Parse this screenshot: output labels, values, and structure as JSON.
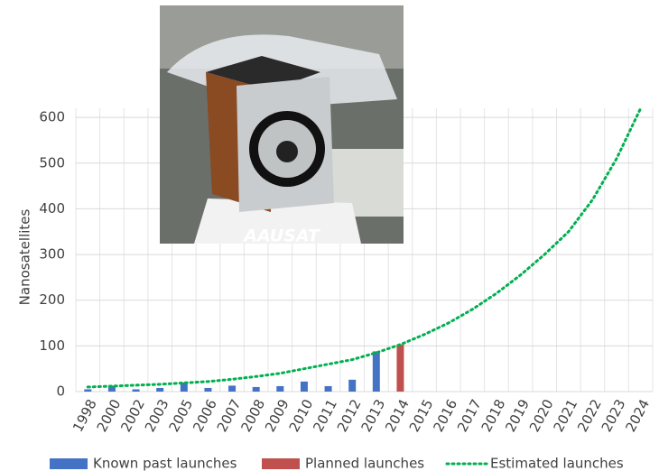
{
  "chart_data": {
    "type": "bar",
    "y_label": "Nanosatellites",
    "annotation": "AAUSAT",
    "categories": [
      "1998",
      "2000",
      "2002",
      "2003",
      "2005",
      "2006",
      "2007",
      "2008",
      "2009",
      "2010",
      "2011",
      "2012",
      "2013",
      "2014",
      "2015",
      "2016",
      "2017",
      "2018",
      "2019",
      "2020",
      "2021",
      "2022",
      "2023",
      "2024"
    ],
    "series": [
      {
        "name": "Known past launches",
        "type": "bar",
        "color": "#4472c4",
        "values": [
          5,
          13,
          5,
          8,
          20,
          8,
          13,
          10,
          12,
          22,
          12,
          26,
          88,
          null,
          null,
          null,
          null,
          null,
          null,
          null,
          null,
          null,
          null,
          null
        ]
      },
      {
        "name": "Planned launches",
        "type": "bar",
        "color": "#c0504d",
        "values": [
          null,
          null,
          null,
          null,
          null,
          null,
          null,
          null,
          null,
          null,
          null,
          null,
          null,
          103,
          null,
          null,
          null,
          null,
          null,
          null,
          null,
          null,
          null,
          null
        ]
      },
      {
        "name": "Estimated launches",
        "type": "line",
        "color": "#00b050",
        "values": [
          10,
          12,
          14,
          16,
          19,
          22,
          27,
          33,
          40,
          50,
          60,
          70,
          85,
          103,
          125,
          150,
          180,
          215,
          255,
          300,
          350,
          420,
          510,
          620
        ]
      }
    ],
    "ylim": [
      0,
      620
    ],
    "yticks": [
      0,
      100,
      200,
      300,
      400,
      500,
      600
    ],
    "grid": true,
    "legend": "bottom"
  }
}
